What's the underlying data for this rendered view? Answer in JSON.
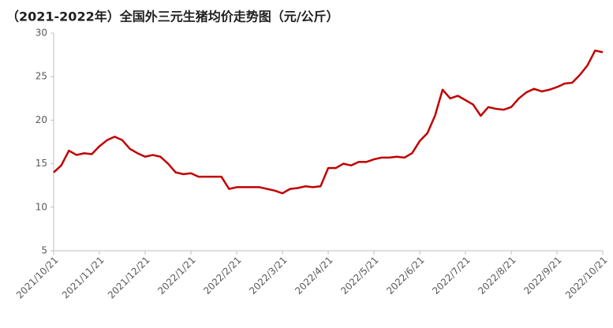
{
  "chart_data": {
    "type": "line",
    "title": "（2021-2022年）全国外三元生猪均价走势图（元/公斤）",
    "categories": [
      "2021/10/21",
      null,
      null,
      null,
      null,
      null,
      "2021/11/21",
      null,
      null,
      null,
      null,
      null,
      "2021/12/21",
      null,
      null,
      null,
      null,
      null,
      "2022/1/21",
      null,
      null,
      null,
      null,
      null,
      "2022/2/21",
      null,
      null,
      null,
      null,
      null,
      "2022/3/21",
      null,
      null,
      null,
      null,
      null,
      "2022/4/21",
      null,
      null,
      null,
      null,
      null,
      "2022/5/21",
      null,
      null,
      null,
      null,
      null,
      "2022/6/21",
      null,
      null,
      null,
      null,
      null,
      "2022/7/21",
      null,
      null,
      null,
      null,
      null,
      "2022/8/21",
      null,
      null,
      null,
      null,
      null,
      "2022/9/21",
      null,
      null,
      null,
      null,
      null,
      "2022/10/21"
    ],
    "values": [
      14.0,
      14.8,
      16.5,
      16.0,
      16.2,
      16.1,
      17.0,
      17.7,
      18.1,
      17.7,
      16.7,
      16.2,
      15.8,
      16.0,
      15.8,
      15.0,
      14.0,
      13.8,
      13.9,
      13.5,
      13.5,
      13.5,
      13.5,
      12.1,
      12.3,
      12.3,
      12.3,
      12.3,
      12.1,
      11.9,
      11.6,
      12.1,
      12.2,
      12.4,
      12.3,
      12.4,
      14.5,
      14.5,
      15.0,
      14.8,
      15.2,
      15.2,
      15.5,
      15.7,
      15.7,
      15.8,
      15.7,
      16.2,
      17.6,
      18.5,
      20.5,
      23.5,
      22.5,
      22.8,
      22.3,
      21.8,
      20.5,
      21.5,
      21.3,
      21.2,
      21.5,
      22.5,
      23.2,
      23.6,
      23.3,
      23.5,
      23.8,
      24.2,
      24.3,
      25.2,
      26.3,
      28.0,
      27.8
    ],
    "color": "#c00000",
    "ylim": [
      5,
      30
    ],
    "yticks": [
      5,
      10,
      15,
      20,
      25,
      30
    ]
  }
}
